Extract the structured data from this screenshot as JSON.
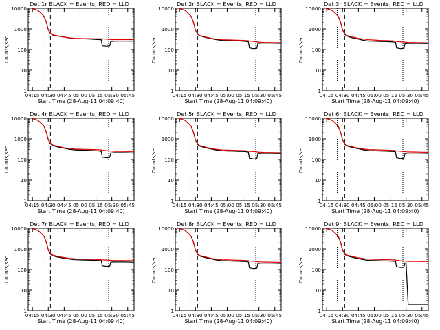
{
  "chart_data": {
    "type": "line",
    "time_ticks": [
      "04:15",
      "04:30",
      "04:45",
      "05:00",
      "05:15",
      "05:30",
      "05:45"
    ],
    "time_tick_minutes": [
      15,
      30,
      45,
      60,
      75,
      90,
      105
    ],
    "x_range_minutes": [
      11,
      111
    ],
    "y_scale": "log",
    "ylim": [
      1,
      10000
    ],
    "y_ticks": [
      "1",
      "10",
      "100",
      "1000",
      "10000"
    ],
    "y_tick_values": [
      1,
      10,
      100,
      1000,
      10000
    ],
    "ylabel": "Counts/sec",
    "xlabel": "Start Time (28-Aug-11 04:09:40)",
    "series_names": [
      "Events",
      "LLD"
    ],
    "series_colors": {
      "Events": "#000000",
      "LLD": "#e00000"
    },
    "marker_lines_minutes": {
      "dotted": [
        25,
        87
      ],
      "dashed": [
        32
      ]
    },
    "x_minutes": [
      11,
      14,
      17,
      20,
      22,
      24,
      26,
      28,
      30,
      32,
      34,
      37,
      40,
      45,
      50,
      55,
      60,
      65,
      70,
      75,
      78,
      80,
      81,
      85,
      88,
      89,
      90,
      92,
      95,
      100,
      105,
      111
    ],
    "panels": [
      {
        "title": "Det 1r BLACK = Events, RED = LLD",
        "events": [
          12000,
          10000,
          9000,
          8000,
          6500,
          5200,
          4000,
          2200,
          900,
          600,
          500,
          470,
          440,
          400,
          360,
          340,
          340,
          330,
          320,
          310,
          305,
          300,
          150,
          145,
          150,
          250,
          250,
          255,
          260,
          260,
          258,
          255
        ],
        "lld": [
          12000,
          10000,
          9000,
          8000,
          6500,
          5200,
          4000,
          2200,
          900,
          620,
          520,
          480,
          450,
          400,
          370,
          350,
          345,
          340,
          340,
          330,
          330,
          330,
          330,
          320,
          310,
          310,
          305,
          305,
          305,
          305,
          305,
          305
        ]
      },
      {
        "title": "Det 2r BLACK = Events, RED = LLD",
        "events": [
          12000,
          10000,
          9000,
          8000,
          6500,
          5200,
          4000,
          2200,
          900,
          560,
          460,
          420,
          380,
          340,
          300,
          280,
          275,
          270,
          265,
          255,
          250,
          240,
          120,
          110,
          115,
          200,
          200,
          205,
          205,
          205,
          203,
          200
        ],
        "lld": [
          12000,
          10000,
          9000,
          8000,
          6500,
          5200,
          4000,
          2200,
          900,
          600,
          480,
          440,
          400,
          350,
          320,
          300,
          295,
          290,
          285,
          280,
          275,
          270,
          260,
          250,
          240,
          235,
          230,
          225,
          222,
          220,
          218,
          215
        ]
      },
      {
        "title": "Det 3r BLACK = Events, RED = LLD",
        "events": [
          12000,
          10000,
          9000,
          8000,
          6500,
          5200,
          4000,
          2200,
          900,
          550,
          450,
          400,
          360,
          320,
          280,
          260,
          255,
          250,
          245,
          240,
          235,
          225,
          120,
          110,
          115,
          195,
          195,
          198,
          200,
          200,
          198,
          195
        ],
        "lld": [
          12000,
          10000,
          9000,
          8000,
          6500,
          5200,
          4000,
          2200,
          900,
          600,
          480,
          440,
          400,
          350,
          320,
          300,
          290,
          280,
          275,
          270,
          265,
          260,
          250,
          240,
          232,
          228,
          225,
          222,
          220,
          218,
          215,
          212
        ]
      },
      {
        "title": "Det 4r BLACK = Events, RED = LLD",
        "events": [
          12000,
          10000,
          9000,
          8000,
          6500,
          5200,
          4000,
          2200,
          900,
          570,
          470,
          430,
          390,
          350,
          310,
          290,
          285,
          280,
          275,
          265,
          260,
          250,
          130,
          120,
          125,
          210,
          210,
          215,
          215,
          215,
          213,
          210
        ],
        "lld": [
          12000,
          10000,
          9000,
          8000,
          6500,
          5200,
          4000,
          2200,
          900,
          620,
          500,
          460,
          420,
          370,
          340,
          320,
          315,
          310,
          305,
          300,
          295,
          290,
          280,
          270,
          262,
          258,
          255,
          252,
          250,
          248,
          246,
          245
        ]
      },
      {
        "title": "Det 5r BLACK = Events, RED = LLD",
        "events": [
          12000,
          10000,
          9000,
          8000,
          6500,
          5200,
          4000,
          2200,
          900,
          540,
          440,
          400,
          360,
          320,
          285,
          265,
          260,
          255,
          250,
          245,
          240,
          230,
          115,
          105,
          110,
          195,
          195,
          200,
          200,
          200,
          198,
          195
        ],
        "lld": [
          12000,
          10000,
          9000,
          8000,
          6500,
          5200,
          4000,
          2200,
          900,
          590,
          470,
          430,
          390,
          340,
          310,
          290,
          285,
          280,
          275,
          270,
          265,
          260,
          252,
          244,
          236,
          232,
          228,
          225,
          222,
          220,
          218,
          215
        ]
      },
      {
        "title": "Det 6r BLACK = Events, RED = LLD",
        "events": [
          12000,
          10000,
          9000,
          8000,
          6500,
          5200,
          4000,
          2200,
          900,
          550,
          450,
          410,
          370,
          330,
          290,
          270,
          265,
          260,
          255,
          250,
          245,
          235,
          120,
          110,
          115,
          200,
          200,
          205,
          205,
          205,
          203,
          200
        ],
        "lld": [
          12000,
          10000,
          9000,
          8000,
          6500,
          5200,
          4000,
          2200,
          900,
          600,
          480,
          440,
          400,
          350,
          320,
          300,
          295,
          290,
          285,
          280,
          275,
          270,
          262,
          254,
          246,
          242,
          238,
          235,
          232,
          230,
          228,
          225
        ]
      },
      {
        "title": "Det 7r BLACK = Events, RED = LLD",
        "events": [
          12000,
          10000,
          9000,
          8000,
          6500,
          5200,
          4000,
          2200,
          900,
          560,
          460,
          420,
          390,
          350,
          320,
          300,
          295,
          290,
          285,
          280,
          275,
          270,
          150,
          140,
          145,
          230,
          230,
          235,
          235,
          235,
          233,
          230
        ],
        "lld": [
          12000,
          10000,
          9000,
          8000,
          6500,
          5200,
          4000,
          2200,
          900,
          610,
          500,
          460,
          420,
          380,
          350,
          330,
          325,
          320,
          315,
          310,
          305,
          300,
          295,
          290,
          285,
          282,
          280,
          278,
          276,
          275,
          273,
          272
        ]
      },
      {
        "title": "Det 8r BLACK = Events, RED = LLD",
        "events": [
          12000,
          10000,
          9000,
          8000,
          6500,
          5200,
          4000,
          2200,
          900,
          550,
          450,
          410,
          370,
          330,
          290,
          270,
          265,
          260,
          255,
          250,
          245,
          235,
          120,
          110,
          115,
          200,
          200,
          205,
          205,
          205,
          203,
          200
        ],
        "lld": [
          12000,
          10000,
          9000,
          8000,
          6500,
          5200,
          4000,
          2200,
          900,
          600,
          480,
          440,
          400,
          350,
          320,
          300,
          295,
          290,
          285,
          280,
          275,
          270,
          262,
          254,
          246,
          242,
          238,
          235,
          232,
          230,
          228,
          225
        ]
      },
      {
        "title": "Det 9r BLACK = Events, RED = LLD",
        "events": [
          12000,
          10000,
          9000,
          8000,
          6500,
          5200,
          4000,
          2200,
          900,
          560,
          460,
          420,
          380,
          340,
          300,
          280,
          275,
          270,
          265,
          260,
          255,
          245,
          135,
          125,
          130,
          210,
          210,
          2,
          2,
          2,
          2,
          2
        ],
        "lld": [
          12000,
          10000,
          9000,
          8000,
          6500,
          5200,
          4000,
          2200,
          900,
          620,
          500,
          460,
          420,
          370,
          340,
          320,
          315,
          310,
          305,
          300,
          295,
          290,
          280,
          270,
          262,
          258,
          255,
          252,
          250,
          248,
          246,
          245
        ]
      }
    ]
  }
}
